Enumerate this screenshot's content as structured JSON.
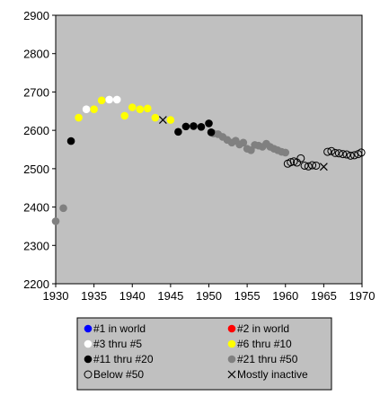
{
  "chart_data": {
    "type": "scatter",
    "title": "",
    "xlabel": "",
    "ylabel": "",
    "xlim": [
      1930,
      1970
    ],
    "ylim": [
      2200,
      2900
    ],
    "x_ticks": [
      1930,
      1935,
      1940,
      1945,
      1950,
      1955,
      1960,
      1965,
      1970
    ],
    "y_ticks": [
      2200,
      2300,
      2400,
      2500,
      2600,
      2700,
      2800,
      2900
    ],
    "grid": false,
    "plot_background": "#c0c0c0",
    "legend_position": "bottom",
    "legend": [
      {
        "label": "#1 in world",
        "color": "#0000ff",
        "marker": "filled"
      },
      {
        "label": "#2 in world",
        "color": "#ff0000",
        "marker": "filled"
      },
      {
        "label": "#3 thru #5",
        "color": "#ffffff",
        "marker": "filled"
      },
      {
        "label": "#6 thru #10",
        "color": "#ffff00",
        "marker": "filled"
      },
      {
        "label": "#11 thru #20",
        "color": "#000000",
        "marker": "filled"
      },
      {
        "label": "#21 thru #50",
        "color": "#808080",
        "marker": "filled"
      },
      {
        "label": "Below #50",
        "color": "#000000",
        "marker": "open"
      },
      {
        "label": "Mostly inactive",
        "color": "#000000",
        "marker": "x"
      }
    ],
    "series": [
      {
        "name": "#21 thru #50",
        "color": "#808080",
        "marker": "filled",
        "points": [
          [
            1930.0,
            2363
          ],
          [
            1931.0,
            2397
          ],
          [
            1950.6,
            2592
          ],
          [
            1951.2,
            2590
          ],
          [
            1951.8,
            2583
          ],
          [
            1952.4,
            2575
          ],
          [
            1953.0,
            2568
          ],
          [
            1953.5,
            2573
          ],
          [
            1954.0,
            2563
          ],
          [
            1954.5,
            2568
          ],
          [
            1955.0,
            2552
          ],
          [
            1955.5,
            2548
          ],
          [
            1956.0,
            2562
          ],
          [
            1956.5,
            2560
          ],
          [
            1957.0,
            2557
          ],
          [
            1957.5,
            2565
          ],
          [
            1958.0,
            2557
          ],
          [
            1958.5,
            2552
          ],
          [
            1959.0,
            2548
          ],
          [
            1959.5,
            2544
          ],
          [
            1960.0,
            2542
          ]
        ]
      },
      {
        "name": "#11 thru #20",
        "color": "#000000",
        "marker": "filled",
        "points": [
          [
            1932.0,
            2572
          ],
          [
            1946.0,
            2596
          ],
          [
            1947.0,
            2610
          ],
          [
            1948.0,
            2611
          ],
          [
            1949.0,
            2609
          ],
          [
            1950.0,
            2618
          ],
          [
            1950.3,
            2595
          ]
        ]
      },
      {
        "name": "#3 thru #5",
        "color": "#ffffff",
        "marker": "filled",
        "points": [
          [
            1934.0,
            2655
          ],
          [
            1937.0,
            2680
          ],
          [
            1938.0,
            2680
          ]
        ]
      },
      {
        "name": "#6 thru #10",
        "color": "#ffff00",
        "marker": "filled",
        "points": [
          [
            1933.0,
            2633
          ],
          [
            1935.0,
            2655
          ],
          [
            1936.0,
            2678
          ],
          [
            1939.0,
            2638
          ],
          [
            1940.0,
            2660
          ],
          [
            1941.0,
            2655
          ],
          [
            1942.0,
            2657
          ],
          [
            1943.0,
            2633
          ],
          [
            1945.0,
            2627
          ]
        ]
      },
      {
        "name": "Below #50",
        "color": "#000000",
        "marker": "open",
        "points": [
          [
            1960.3,
            2513
          ],
          [
            1960.7,
            2517
          ],
          [
            1961.1,
            2519
          ],
          [
            1961.5,
            2516
          ],
          [
            1962.0,
            2527
          ],
          [
            1962.5,
            2508
          ],
          [
            1963.0,
            2506
          ],
          [
            1963.5,
            2509
          ],
          [
            1964.0,
            2508
          ],
          [
            1965.5,
            2544
          ],
          [
            1966.0,
            2546
          ],
          [
            1966.5,
            2541
          ],
          [
            1967.0,
            2540
          ],
          [
            1967.5,
            2538
          ],
          [
            1968.0,
            2537
          ],
          [
            1968.5,
            2534
          ],
          [
            1969.0,
            2535
          ],
          [
            1969.5,
            2538
          ],
          [
            1969.9,
            2542
          ]
        ]
      },
      {
        "name": "Mostly inactive",
        "color": "#000000",
        "marker": "x",
        "points": [
          [
            1944.0,
            2627
          ],
          [
            1965.0,
            2505
          ]
        ]
      }
    ]
  }
}
